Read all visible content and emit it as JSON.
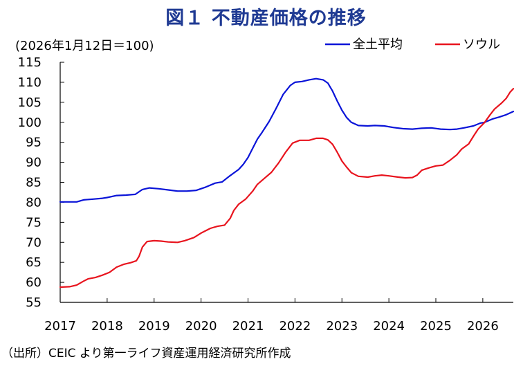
{
  "title": "図１ 不動産価格の推移",
  "unit_note": "(2026年1月12日＝100)",
  "source": "（出所）CEIC より第一ライフ資産運用経済研究所作成",
  "colors": {
    "zenkoku": "#0a14d8",
    "seoul": "#e8141e",
    "axis": "#000000"
  },
  "chart_data": {
    "type": "line",
    "title": "図１ 不動産価格の推移",
    "xlabel": "",
    "ylabel": "",
    "xlim": [
      2017,
      2026.65
    ],
    "ylim": [
      55,
      115
    ],
    "yticks": [
      55,
      60,
      65,
      70,
      75,
      80,
      85,
      90,
      95,
      100,
      105,
      110,
      115
    ],
    "xticks": [
      2017,
      2018,
      2019,
      2020,
      2021,
      2022,
      2023,
      2024,
      2025,
      2026
    ],
    "xtick_labels": [
      "2017",
      "2018",
      "2019",
      "2020",
      "2021",
      "2022",
      "2023",
      "2024",
      "2025",
      "2026"
    ],
    "grid": false,
    "legend_position": "top-right",
    "series": [
      {
        "name": "全土平均",
        "color": "#0a14d8",
        "points": [
          [
            2017.0,
            80.1
          ],
          [
            2017.35,
            80.1
          ],
          [
            2017.5,
            80.6
          ],
          [
            2017.7,
            80.8
          ],
          [
            2017.9,
            81.0
          ],
          [
            2018.0,
            81.2
          ],
          [
            2018.2,
            81.7
          ],
          [
            2018.4,
            81.8
          ],
          [
            2018.6,
            82.0
          ],
          [
            2018.75,
            83.2
          ],
          [
            2018.9,
            83.6
          ],
          [
            2019.1,
            83.4
          ],
          [
            2019.3,
            83.1
          ],
          [
            2019.5,
            82.8
          ],
          [
            2019.7,
            82.8
          ],
          [
            2019.9,
            83.0
          ],
          [
            2020.1,
            83.8
          ],
          [
            2020.3,
            84.8
          ],
          [
            2020.45,
            85.1
          ],
          [
            2020.6,
            86.5
          ],
          [
            2020.8,
            88.2
          ],
          [
            2020.9,
            89.5
          ],
          [
            2021.0,
            91.2
          ],
          [
            2021.1,
            93.5
          ],
          [
            2021.2,
            95.8
          ],
          [
            2021.3,
            97.5
          ],
          [
            2021.45,
            100.2
          ],
          [
            2021.6,
            103.5
          ],
          [
            2021.75,
            107.0
          ],
          [
            2021.9,
            109.2
          ],
          [
            2022.0,
            110.0
          ],
          [
            2022.15,
            110.2
          ],
          [
            2022.3,
            110.6
          ],
          [
            2022.45,
            110.9
          ],
          [
            2022.6,
            110.6
          ],
          [
            2022.7,
            109.8
          ],
          [
            2022.8,
            107.8
          ],
          [
            2022.9,
            105.3
          ],
          [
            2023.0,
            103.0
          ],
          [
            2023.1,
            101.2
          ],
          [
            2023.2,
            100.0
          ],
          [
            2023.35,
            99.2
          ],
          [
            2023.55,
            99.1
          ],
          [
            2023.7,
            99.2
          ],
          [
            2023.9,
            99.1
          ],
          [
            2024.1,
            98.7
          ],
          [
            2024.3,
            98.4
          ],
          [
            2024.5,
            98.3
          ],
          [
            2024.7,
            98.5
          ],
          [
            2024.9,
            98.6
          ],
          [
            2025.1,
            98.3
          ],
          [
            2025.3,
            98.2
          ],
          [
            2025.45,
            98.3
          ],
          [
            2025.6,
            98.6
          ],
          [
            2025.8,
            99.1
          ],
          [
            2025.95,
            99.8
          ],
          [
            2026.04,
            100.0
          ],
          [
            2026.2,
            100.8
          ],
          [
            2026.35,
            101.3
          ],
          [
            2026.5,
            101.9
          ],
          [
            2026.65,
            102.7
          ]
        ]
      },
      {
        "name": "ソウル",
        "color": "#e8141e",
        "points": [
          [
            2017.0,
            58.8
          ],
          [
            2017.2,
            58.9
          ],
          [
            2017.35,
            59.3
          ],
          [
            2017.5,
            60.3
          ],
          [
            2017.6,
            60.9
          ],
          [
            2017.75,
            61.2
          ],
          [
            2017.9,
            61.8
          ],
          [
            2018.05,
            62.5
          ],
          [
            2018.2,
            63.8
          ],
          [
            2018.35,
            64.5
          ],
          [
            2018.5,
            64.9
          ],
          [
            2018.62,
            65.4
          ],
          [
            2018.68,
            66.5
          ],
          [
            2018.75,
            68.8
          ],
          [
            2018.85,
            70.2
          ],
          [
            2019.0,
            70.4
          ],
          [
            2019.15,
            70.3
          ],
          [
            2019.3,
            70.1
          ],
          [
            2019.5,
            70.0
          ],
          [
            2019.65,
            70.4
          ],
          [
            2019.85,
            71.2
          ],
          [
            2020.0,
            72.3
          ],
          [
            2020.2,
            73.5
          ],
          [
            2020.35,
            74.0
          ],
          [
            2020.5,
            74.3
          ],
          [
            2020.62,
            76.0
          ],
          [
            2020.7,
            78.0
          ],
          [
            2020.8,
            79.5
          ],
          [
            2020.95,
            80.8
          ],
          [
            2021.1,
            82.8
          ],
          [
            2021.2,
            84.5
          ],
          [
            2021.35,
            86.0
          ],
          [
            2021.5,
            87.5
          ],
          [
            2021.65,
            89.8
          ],
          [
            2021.8,
            92.5
          ],
          [
            2021.95,
            94.8
          ],
          [
            2022.1,
            95.5
          ],
          [
            2022.3,
            95.5
          ],
          [
            2022.45,
            96.0
          ],
          [
            2022.6,
            96.0
          ],
          [
            2022.7,
            95.6
          ],
          [
            2022.8,
            94.5
          ],
          [
            2022.9,
            92.5
          ],
          [
            2023.0,
            90.3
          ],
          [
            2023.1,
            88.8
          ],
          [
            2023.2,
            87.4
          ],
          [
            2023.35,
            86.5
          ],
          [
            2023.55,
            86.3
          ],
          [
            2023.7,
            86.6
          ],
          [
            2023.85,
            86.8
          ],
          [
            2024.0,
            86.6
          ],
          [
            2024.2,
            86.3
          ],
          [
            2024.35,
            86.1
          ],
          [
            2024.5,
            86.2
          ],
          [
            2024.6,
            86.8
          ],
          [
            2024.7,
            88.0
          ],
          [
            2024.85,
            88.6
          ],
          [
            2025.0,
            89.1
          ],
          [
            2025.15,
            89.3
          ],
          [
            2025.3,
            90.5
          ],
          [
            2025.45,
            91.9
          ],
          [
            2025.55,
            93.3
          ],
          [
            2025.7,
            94.6
          ],
          [
            2025.8,
            96.5
          ],
          [
            2025.9,
            98.3
          ],
          [
            2026.04,
            100.0
          ],
          [
            2026.15,
            101.8
          ],
          [
            2026.25,
            103.3
          ],
          [
            2026.4,
            104.8
          ],
          [
            2026.5,
            106.0
          ],
          [
            2026.58,
            107.5
          ],
          [
            2026.65,
            108.4
          ]
        ]
      }
    ]
  }
}
